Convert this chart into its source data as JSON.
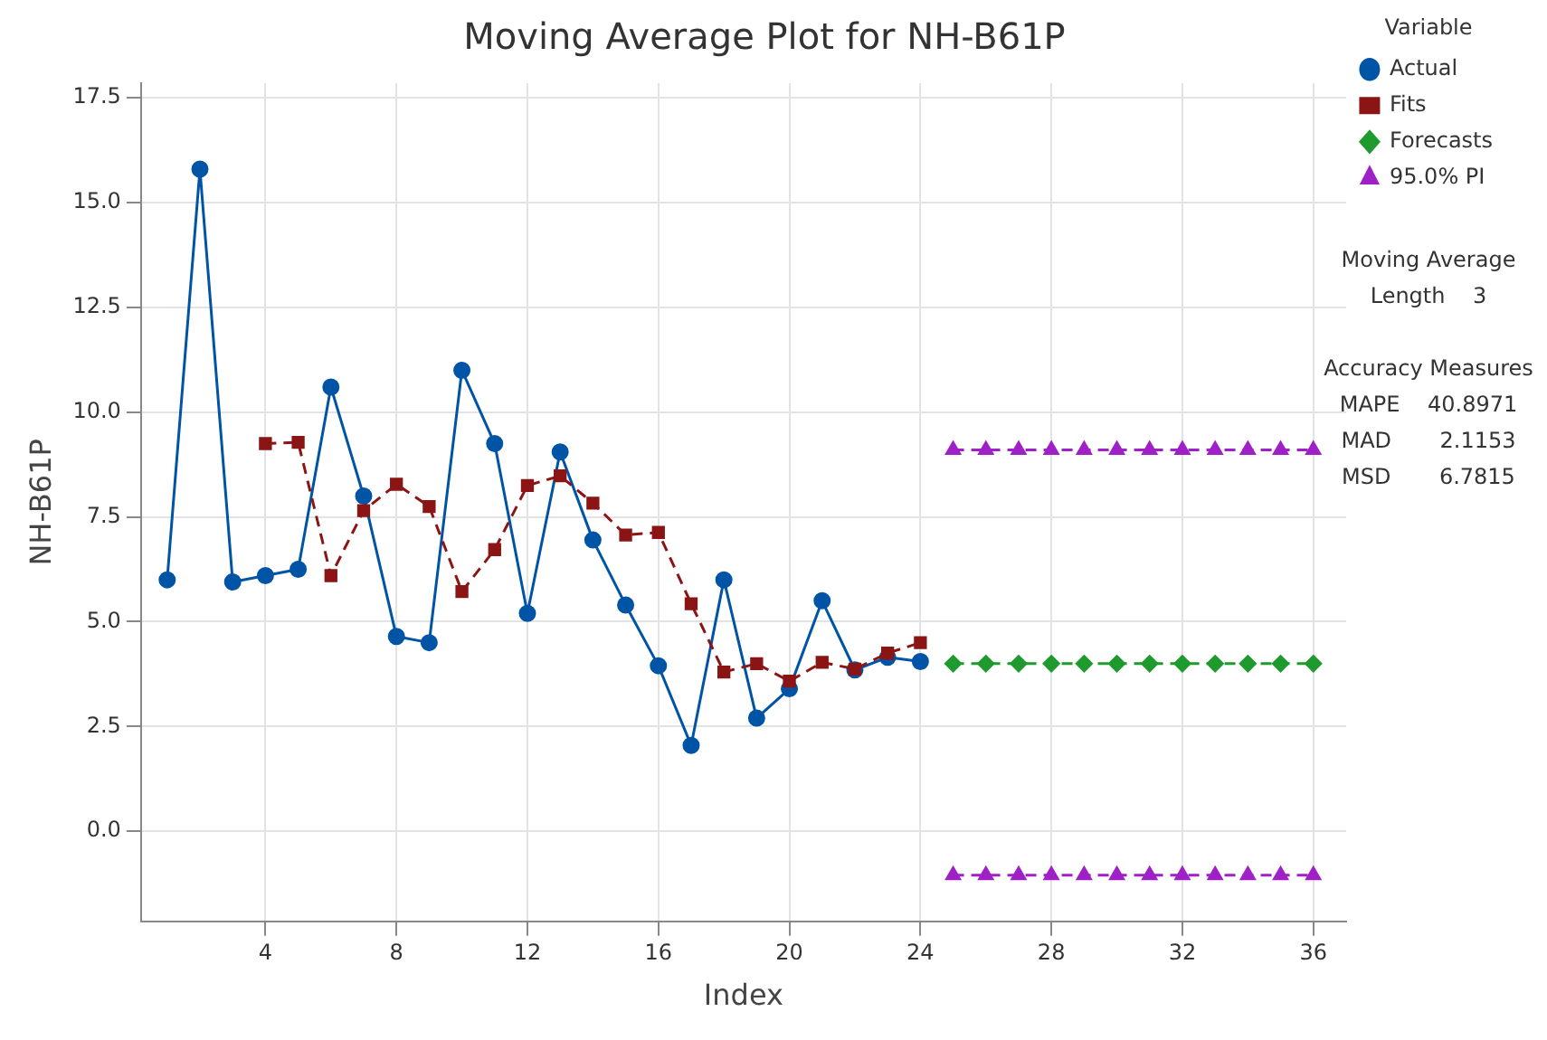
{
  "chart_data": {
    "type": "line",
    "title": "Moving Average Plot for NH-B61P",
    "xlabel": "Index",
    "ylabel": "NH-B61P",
    "legend_title": "Variable",
    "xlim": [
      0.2,
      37
    ],
    "xticks": [
      4,
      8,
      12,
      16,
      20,
      24,
      28,
      32,
      36
    ],
    "ylim": [
      -2.15,
      17.85
    ],
    "yticks": [
      {
        "value": 0,
        "label": "0.0"
      },
      {
        "value": 2.5,
        "label": "2.5"
      },
      {
        "value": 5,
        "label": "5.0"
      },
      {
        "value": 7.5,
        "label": "7.5"
      },
      {
        "value": 10,
        "label": "10.0"
      },
      {
        "value": 12.5,
        "label": "12.5"
      },
      {
        "value": 15,
        "label": "15.0"
      },
      {
        "value": 17.5,
        "label": "17.5"
      }
    ],
    "grid": true,
    "legend": "top right",
    "series": [
      {
        "name": "Actual",
        "color": "#0054a6",
        "marker": "circle",
        "line_style": "solid",
        "x": [
          1,
          2,
          3,
          4,
          5,
          6,
          7,
          8,
          9,
          10,
          11,
          12,
          13,
          14,
          15,
          16,
          17,
          18,
          19,
          20,
          21,
          22,
          23,
          24
        ],
        "values": [
          6.0,
          15.8,
          5.95,
          6.1,
          6.25,
          10.6,
          8.0,
          4.65,
          4.5,
          11.0,
          9.25,
          5.2,
          9.05,
          6.95,
          5.4,
          3.95,
          2.05,
          6.0,
          2.7,
          3.4,
          5.5,
          3.85,
          4.15,
          4.05
        ]
      },
      {
        "name": "Fits",
        "color": "#8b1414",
        "marker": "square",
        "line_style": "dashed",
        "x": [
          4,
          5,
          6,
          7,
          8,
          9,
          10,
          11,
          12,
          13,
          14,
          15,
          16,
          17,
          18,
          19,
          20,
          21,
          22,
          23,
          24
        ],
        "values": [
          9.25,
          9.28,
          6.1,
          7.65,
          8.28,
          7.75,
          5.72,
          6.72,
          8.25,
          8.48,
          7.83,
          7.07,
          7.13,
          5.43,
          3.8,
          4.0,
          3.58,
          4.03,
          3.87,
          4.25,
          4.5
        ]
      },
      {
        "name": "Forecasts",
        "color": "#1f9a2e",
        "marker": "diamond",
        "line_style": "dashed",
        "x": [
          25,
          26,
          27,
          28,
          29,
          30,
          31,
          32,
          33,
          34,
          35,
          36
        ],
        "values": [
          4.0,
          4.0,
          4.0,
          4.0,
          4.0,
          4.0,
          4.0,
          4.0,
          4.0,
          4.0,
          4.0,
          4.0
        ]
      },
      {
        "name": "95.0% PI",
        "color": "#a020c8",
        "marker": "triangle",
        "line_style": "dashed",
        "x": [
          25,
          26,
          27,
          28,
          29,
          30,
          31,
          32,
          33,
          34,
          35,
          36
        ],
        "values": [
          9.1,
          9.1,
          9.1,
          9.1,
          9.1,
          9.1,
          9.1,
          9.1,
          9.1,
          9.1,
          9.1,
          9.1
        ]
      },
      {
        "color": "#a020c8",
        "marker": "triangle",
        "line_style": "dashed",
        "x": [
          25,
          26,
          27,
          28,
          29,
          30,
          31,
          32,
          33,
          34,
          35,
          36
        ],
        "values": [
          -1.05,
          -1.05,
          -1.05,
          -1.05,
          -1.05,
          -1.05,
          -1.05,
          -1.05,
          -1.05,
          -1.05,
          -1.05,
          -1.05
        ]
      }
    ],
    "annotations": [
      "Moving Average",
      "Length    3",
      "Accuracy Measures",
      "MAPE    40.8971",
      "MAD       2.1153",
      "MSD       6.7815"
    ]
  }
}
